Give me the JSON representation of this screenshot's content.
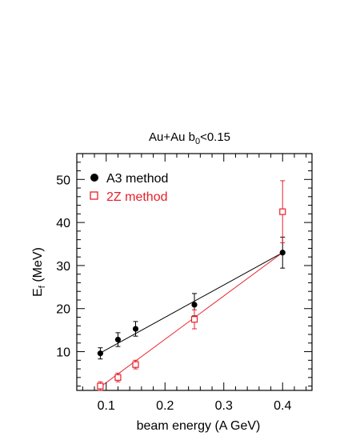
{
  "chart_data": {
    "type": "scatter",
    "title_main": "Au+Au b",
    "title_sub": "0",
    "title_tail": "<0.15",
    "xlabel": "beam energy (A GeV)",
    "ylabel_main": "E",
    "ylabel_sub": "f",
    "ylabel_tail": " (MeV)",
    "xlim": [
      0.05,
      0.45
    ],
    "ylim": [
      1,
      56
    ],
    "x_ticks": [
      0.1,
      0.2,
      0.3,
      0.4
    ],
    "x_tick_labels": [
      "0.1",
      "0.2",
      "0.3",
      "0.4"
    ],
    "y_ticks": [
      10,
      20,
      30,
      40,
      50
    ],
    "y_tick_labels": [
      "10",
      "20",
      "30",
      "40",
      "50"
    ],
    "grid": false,
    "legend_position": "top-left",
    "series": [
      {
        "name": "A3 method",
        "color": "#000000",
        "marker": "filled-circle",
        "x": [
          0.09,
          0.12,
          0.15,
          0.25,
          0.4
        ],
        "y": [
          9.6,
          12.8,
          15.3,
          20.9,
          33.0
        ],
        "yerr": [
          1.3,
          1.6,
          1.7,
          2.6,
          3.6
        ],
        "fit": [
          [
            0.09,
            9.7
          ],
          [
            0.4,
            33.0
          ]
        ]
      },
      {
        "name": "2Z method",
        "color": "#e8202a",
        "marker": "open-square",
        "x": [
          0.09,
          0.12,
          0.15,
          0.25,
          0.4
        ],
        "y": [
          2.0,
          4.0,
          7.0,
          17.5,
          42.5
        ],
        "yerr": [
          1.0,
          1.0,
          1.0,
          2.2,
          7.2
        ],
        "fit": [
          [
            0.09,
            1.8
          ],
          [
            0.4,
            33.0
          ]
        ]
      }
    ]
  }
}
